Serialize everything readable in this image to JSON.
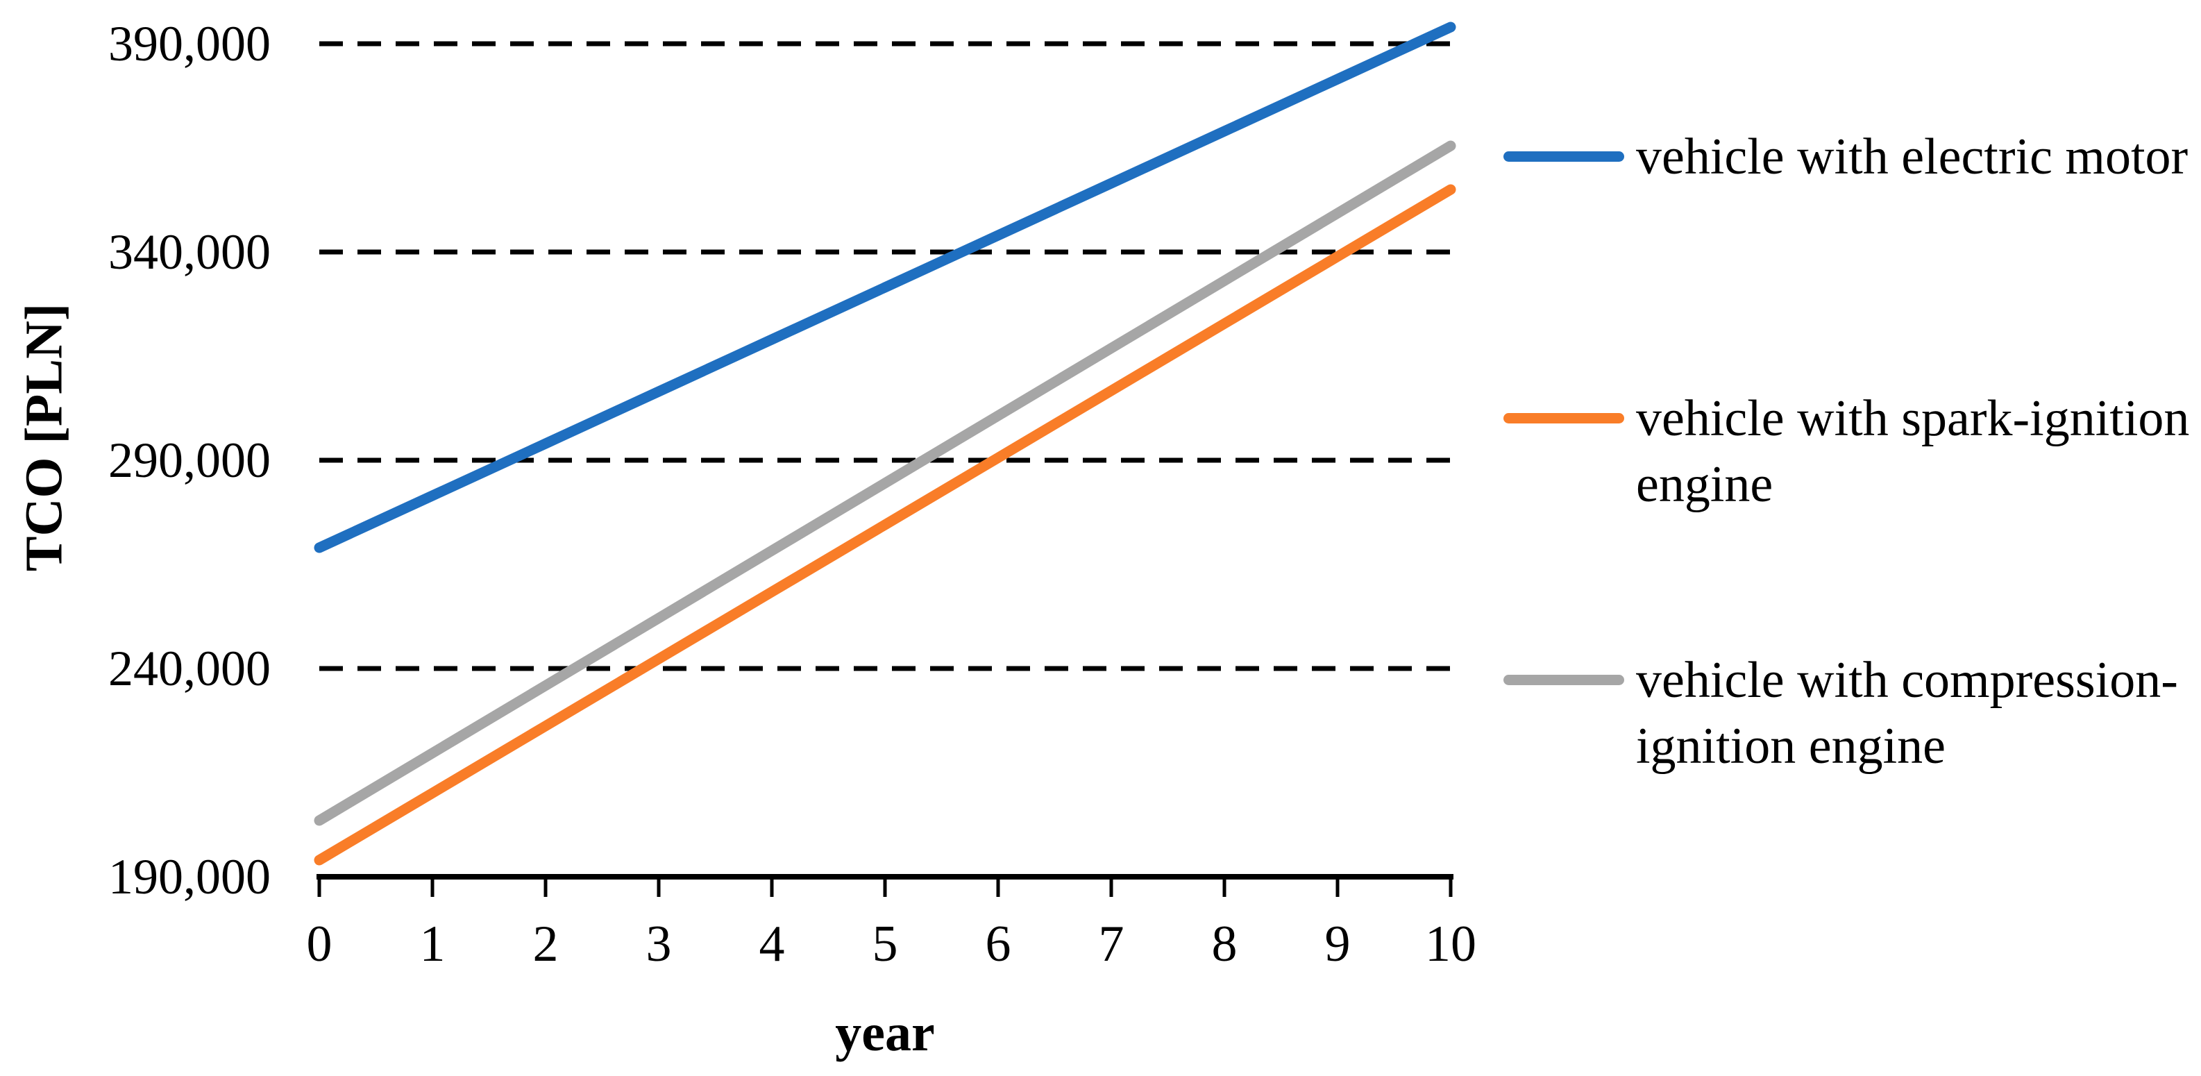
{
  "chart_data": {
    "type": "line",
    "title": "",
    "xlabel": "year",
    "ylabel": "TCO [PLN]",
    "x": [
      0,
      1,
      2,
      3,
      4,
      5,
      6,
      7,
      8,
      9,
      10
    ],
    "x_tick_labels": [
      "0",
      "1",
      "2",
      "3",
      "4",
      "5",
      "6",
      "7",
      "8",
      "9",
      "10"
    ],
    "y_ticks": [
      390000,
      340000,
      290000,
      240000,
      190000
    ],
    "y_tick_labels": [
      "390,000",
      "340,000",
      "290,000",
      "240,000",
      "190,000"
    ],
    "xlim": [
      0,
      10
    ],
    "ylim": [
      190000,
      400500
    ],
    "grid": "horizontal-dashed",
    "gridline_color": "#000000",
    "axis_color": "#000000",
    "legend_position": "right",
    "series": [
      {
        "name": "vehicle with electric motor",
        "legend_lines": [
          "vehicle with electric motor"
        ],
        "color": "#1F6FC0",
        "values": [
          269000,
          281500,
          294000,
          306500,
          319000,
          331500,
          344000,
          356500,
          369000,
          381500,
          394000
        ]
      },
      {
        "name": "vehicle with spark-ignition engine",
        "legend_lines": [
          "vehicle with spark-ignition",
          "engine"
        ],
        "color": "#F97D28",
        "values": [
          194000,
          210100,
          226200,
          242300,
          258400,
          274500,
          290600,
          306700,
          322800,
          338900,
          355000
        ]
      },
      {
        "name": "vehicle with compression-ignition engine",
        "legend_lines": [
          "vehicle with compression-",
          "ignition engine"
        ],
        "color": "#A6A6A6",
        "values": [
          203500,
          219700,
          235900,
          252100,
          268300,
          284500,
          300700,
          316900,
          333100,
          349300,
          365500
        ]
      }
    ]
  }
}
